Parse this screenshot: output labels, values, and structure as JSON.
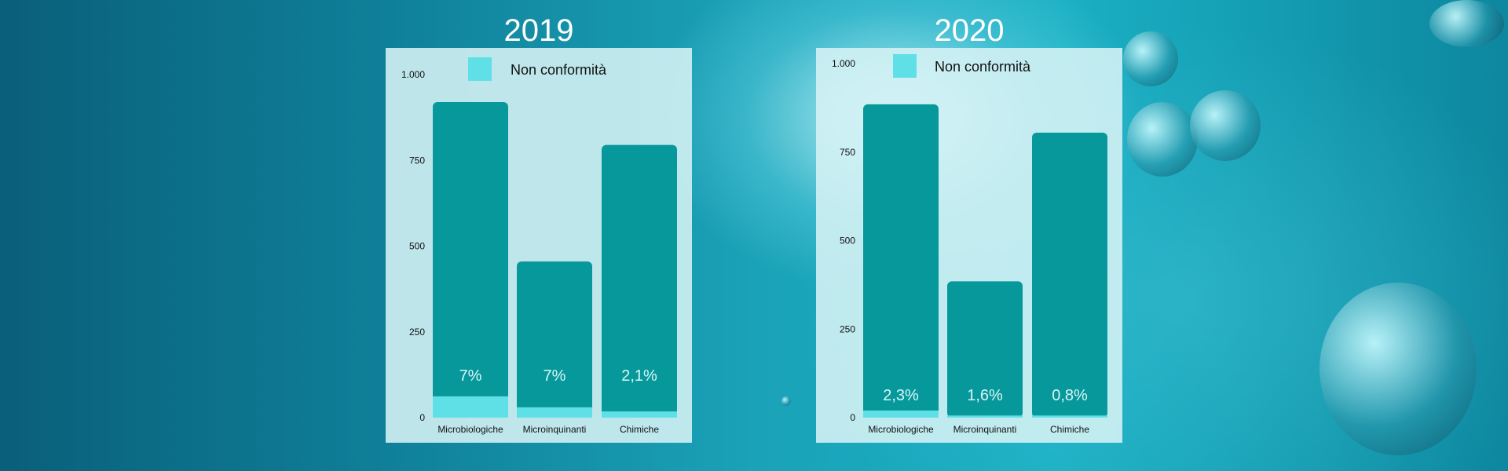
{
  "colors": {
    "panel_bg": "#d6f2f5",
    "bar_total": "#07989b",
    "bar_nonconform": "#5fe0e6",
    "pct_label": "#d9f6f7",
    "axis_text": "#111111"
  },
  "chart_data": [
    {
      "type": "bar",
      "title": "2019",
      "legend": "Non conformità",
      "categories": [
        "Microbiologiche",
        "Microinquinanti",
        "Chimiche"
      ],
      "values": [
        920,
        455,
        795
      ],
      "nonconform_values": [
        62,
        30,
        18
      ],
      "pct_labels": [
        "7%",
        "7%",
        "2,1%"
      ],
      "ylim": [
        0,
        1000
      ],
      "yticks": [
        0,
        250,
        500,
        750,
        1000
      ],
      "ytick_labels": [
        "0",
        "250",
        "500",
        "750",
        "1.000"
      ]
    },
    {
      "type": "bar",
      "title": "2020",
      "legend": "Non conformità",
      "categories": [
        "Microbiologiche",
        "Microinquinanti",
        "Chimiche"
      ],
      "values": [
        885,
        385,
        805
      ],
      "nonconform_values": [
        20,
        6,
        6
      ],
      "pct_labels": [
        "2,3%",
        "1,6%",
        "0,8%"
      ],
      "ylim": [
        0,
        1000
      ],
      "yticks": [
        0,
        250,
        500,
        750,
        1000
      ],
      "ytick_labels": [
        "0",
        "250",
        "500",
        "750",
        "1.000"
      ]
    }
  ]
}
